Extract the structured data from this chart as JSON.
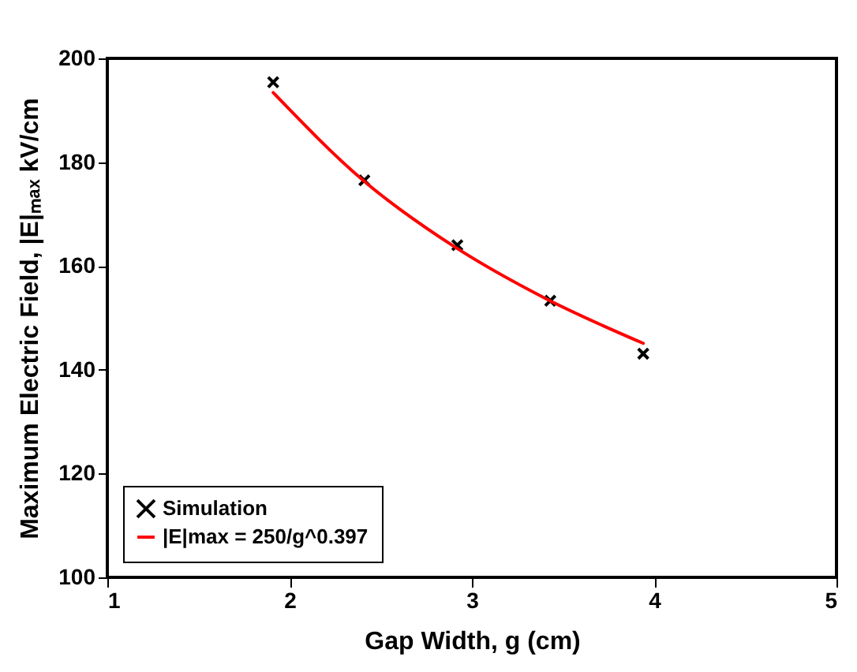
{
  "chart_data": {
    "type": "scatter",
    "xlabel": "Gap Width, g (cm)",
    "ylabel": "Maximum Electric Field, |E|ₘₐₓ kV/cm",
    "xlim": [
      1,
      5
    ],
    "xticks": [
      1,
      2,
      3,
      4,
      5
    ],
    "ylim": [
      100,
      200
    ],
    "yticks": [
      100,
      120,
      140,
      160,
      180,
      200
    ],
    "grid": false,
    "legend": "bottom left",
    "series": [
      {
        "name": "Simulation",
        "marker": "cross",
        "color": "#000000",
        "x": [
          1.91,
          2.41,
          2.92,
          3.43,
          3.94
        ],
        "values": [
          195.4,
          176.5,
          164,
          153.3,
          143.1
        ]
      },
      {
        "name": "|E|max = 250/g^0.397",
        "type": "line",
        "marker": "none",
        "color": "#ff0000",
        "x": [
          1.91,
          2.4,
          2.9,
          3.4,
          3.94
        ],
        "values": [
          193.4,
          176.6,
          163.8,
          153.8,
          145.1
        ]
      }
    ]
  }
}
